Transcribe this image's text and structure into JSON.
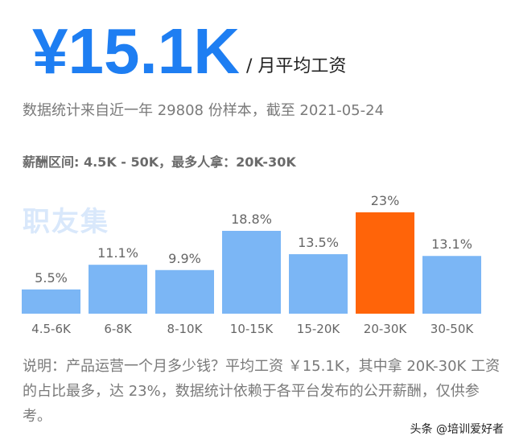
{
  "header": {
    "salary_value": "¥15.1K",
    "salary_unit": "/ 月平均工资",
    "sample_info": "数据统计来自近一年 29808 份样本，截至 2021-05-24",
    "range_info": "薪酬区间: 4.5K - 50K，最多人拿：20K-30K"
  },
  "watermark": "职友集",
  "chart_data": {
    "type": "bar",
    "categories": [
      "4.5-6K",
      "6-8K",
      "8-10K",
      "10-15K",
      "15-20K",
      "20-30K",
      "30-50K"
    ],
    "values": [
      5.5,
      11.1,
      9.9,
      18.8,
      13.5,
      23,
      13.1
    ],
    "data_labels": [
      "5.5%",
      "11.1%",
      "9.9%",
      "18.8%",
      "13.5%",
      "23%",
      "13.1%"
    ],
    "highlight_index": 5,
    "ylim": [
      0,
      23
    ],
    "grid": false,
    "colors": {
      "bar": "#7bb6f5",
      "highlight": "#ff6409"
    }
  },
  "note": "说明：产品运营一个月多少钱？平均工资 ￥15.1K，其中拿 20K-30K 工资的占比最多，达 23%，数据统计依赖于各平台发布的公开薪酬，仅供参考。",
  "credit": "头条 @培训爱好者"
}
